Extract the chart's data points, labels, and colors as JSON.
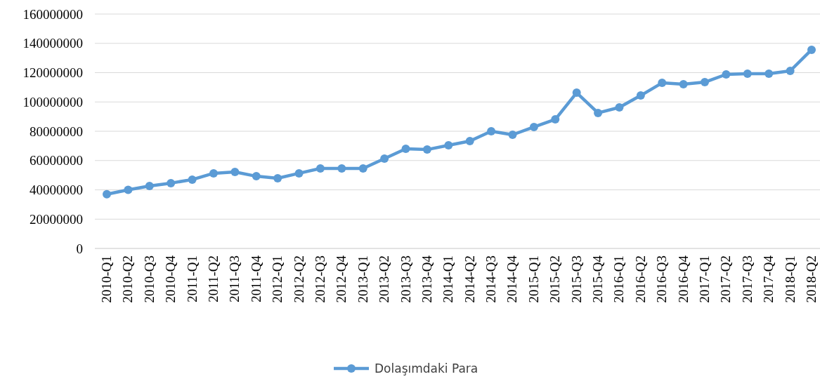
{
  "chart_data": {
    "type": "line",
    "categories": [
      "2010-Q1",
      "2010-Q2",
      "2010-Q3",
      "2010-Q4",
      "2011-Q1",
      "2011-Q2",
      "2011-Q3",
      "2011-Q4",
      "2012-Q1",
      "2012-Q2",
      "2012-Q3",
      "2012-Q4",
      "2013-Q1",
      "2013-Q2",
      "2013-Q3",
      "2013-Q4",
      "2014-Q1",
      "2014-Q2",
      "2014-Q3",
      "2014-Q4",
      "2015-Q1",
      "2015-Q2",
      "2015-Q3",
      "2015-Q4",
      "2016-Q1",
      "2016-Q2",
      "2016-Q3",
      "2016-Q4",
      "2017-Q1",
      "2017-Q2",
      "2017-Q3",
      "2017-Q4",
      "2018-Q1",
      "2018-Q2"
    ],
    "series": [
      {
        "name": "Dolaşımdaki Para",
        "color": "#5b9bd5",
        "values": [
          37000000,
          40000000,
          42600000,
          44600000,
          47000000,
          51300000,
          52200000,
          49300000,
          47900000,
          51300000,
          54600000,
          54600000,
          54600000,
          61300000,
          68000000,
          67500000,
          70400000,
          73300000,
          80000000,
          77600000,
          82900000,
          88100000,
          106300000,
          92500000,
          96300000,
          104400000,
          113000000,
          112100000,
          113500000,
          118800000,
          119300000,
          119300000,
          121200000,
          135600000
        ]
      }
    ],
    "ylim": [
      0,
      160000000
    ],
    "yticks": [
      0,
      20000000,
      40000000,
      60000000,
      80000000,
      100000000,
      120000000,
      140000000,
      160000000
    ],
    "grid": "y",
    "legend": "bottom",
    "marker": "circle",
    "line_style": "solid"
  }
}
